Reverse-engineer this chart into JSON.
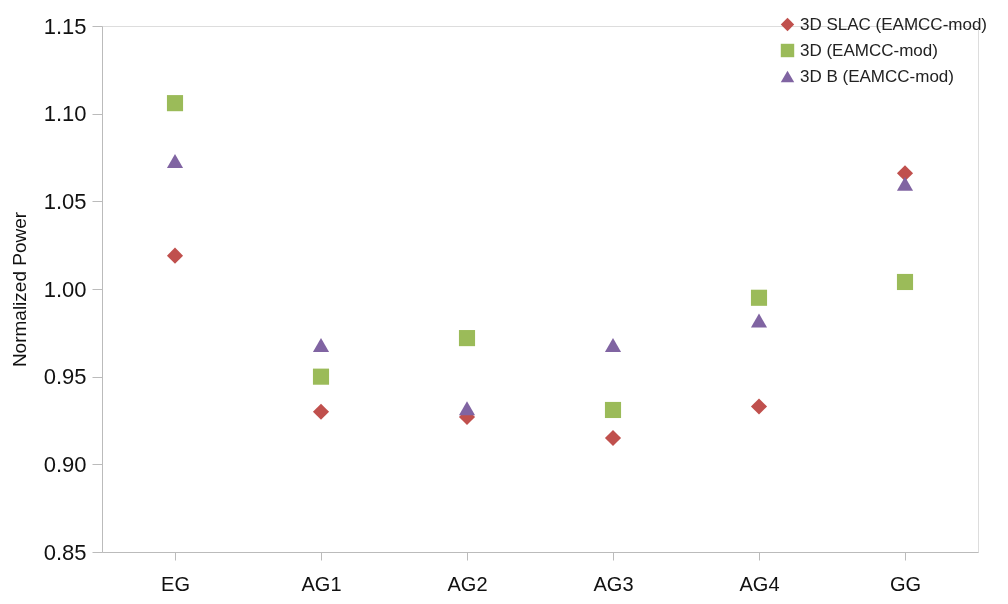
{
  "chart_data": {
    "type": "scatter",
    "ylabel": "Normalized Power",
    "categories": [
      "EG",
      "AG1",
      "AG2",
      "AG3",
      "AG4",
      "GG"
    ],
    "series": [
      {
        "name": "3D SLAC (EAMCC-mod)",
        "color": "#c0504d",
        "marker": "diamond",
        "values": [
          1.019,
          0.93,
          0.927,
          0.915,
          0.933,
          1.066
        ]
      },
      {
        "name": "3D (EAMCC-mod)",
        "color": "#9bbb59",
        "marker": "square",
        "values": [
          1.106,
          0.95,
          0.972,
          0.931,
          0.995,
          1.004
        ]
      },
      {
        "name": "3D B (EAMCC-mod)",
        "color": "#8064a2",
        "marker": "triangle",
        "values": [
          1.073,
          0.968,
          0.932,
          0.968,
          0.982,
          1.06
        ]
      }
    ],
    "ylim": [
      0.85,
      1.15
    ],
    "yticks": [
      {
        "value": 0.85,
        "label": "0.85"
      },
      {
        "value": 0.9,
        "label": "0.90"
      },
      {
        "value": 0.95,
        "label": "0.95"
      },
      {
        "value": 1.0,
        "label": "1.00"
      },
      {
        "value": 1.05,
        "label": "1.05"
      },
      {
        "value": 1.1,
        "label": "1.10"
      },
      {
        "value": 1.15,
        "label": "1.15"
      }
    ],
    "grid": false,
    "legend": "top right"
  }
}
